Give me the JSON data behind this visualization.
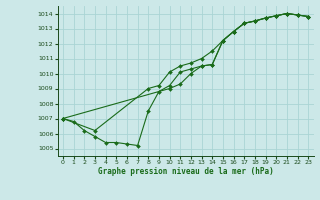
{
  "xlabel": "Graphe pression niveau de la mer (hPa)",
  "bg_color": "#cce8e8",
  "grid_color": "#aad4d4",
  "line_color": "#1a6b1a",
  "marker_color": "#1a6b1a",
  "xlim": [
    -0.5,
    23.5
  ],
  "ylim": [
    1004.5,
    1014.5
  ],
  "yticks": [
    1005,
    1006,
    1007,
    1008,
    1009,
    1010,
    1011,
    1012,
    1013,
    1014
  ],
  "xticks": [
    0,
    1,
    2,
    3,
    4,
    5,
    6,
    7,
    8,
    9,
    10,
    11,
    12,
    13,
    14,
    15,
    16,
    17,
    18,
    19,
    20,
    21,
    22,
    23
  ],
  "series1": [
    [
      0,
      1007.0
    ],
    [
      1,
      1006.8
    ],
    [
      2,
      1006.2
    ],
    [
      3,
      1005.8
    ],
    [
      4,
      1005.4
    ],
    [
      5,
      1005.4
    ],
    [
      6,
      1005.3
    ],
    [
      7,
      1005.2
    ],
    [
      8,
      1007.5
    ],
    [
      9,
      1008.8
    ],
    [
      10,
      1009.2
    ],
    [
      11,
      1010.1
    ],
    [
      12,
      1010.3
    ],
    [
      13,
      1010.5
    ],
    [
      14,
      1010.6
    ],
    [
      15,
      1012.2
    ],
    [
      16,
      1012.8
    ],
    [
      17,
      1013.35
    ],
    [
      18,
      1013.5
    ],
    [
      19,
      1013.7
    ],
    [
      20,
      1013.85
    ],
    [
      21,
      1014.0
    ],
    [
      22,
      1013.9
    ],
    [
      23,
      1013.8
    ]
  ],
  "series2": [
    [
      0,
      1007.0
    ],
    [
      3,
      1006.2
    ],
    [
      8,
      1009.0
    ],
    [
      9,
      1009.2
    ],
    [
      10,
      1010.1
    ],
    [
      11,
      1010.5
    ],
    [
      12,
      1010.7
    ],
    [
      13,
      1011.0
    ],
    [
      14,
      1011.5
    ],
    [
      15,
      1012.2
    ],
    [
      16,
      1012.8
    ],
    [
      17,
      1013.35
    ],
    [
      18,
      1013.5
    ],
    [
      19,
      1013.7
    ],
    [
      20,
      1013.85
    ],
    [
      21,
      1014.0
    ],
    [
      22,
      1013.9
    ],
    [
      23,
      1013.8
    ]
  ],
  "series3": [
    [
      0,
      1007.0
    ],
    [
      10,
      1009.0
    ],
    [
      11,
      1009.3
    ],
    [
      12,
      1010.0
    ],
    [
      13,
      1010.5
    ],
    [
      14,
      1010.6
    ],
    [
      15,
      1012.2
    ],
    [
      16,
      1012.8
    ],
    [
      17,
      1013.35
    ],
    [
      18,
      1013.5
    ],
    [
      19,
      1013.7
    ],
    [
      20,
      1013.85
    ],
    [
      21,
      1014.0
    ],
    [
      22,
      1013.9
    ],
    [
      23,
      1013.8
    ]
  ]
}
